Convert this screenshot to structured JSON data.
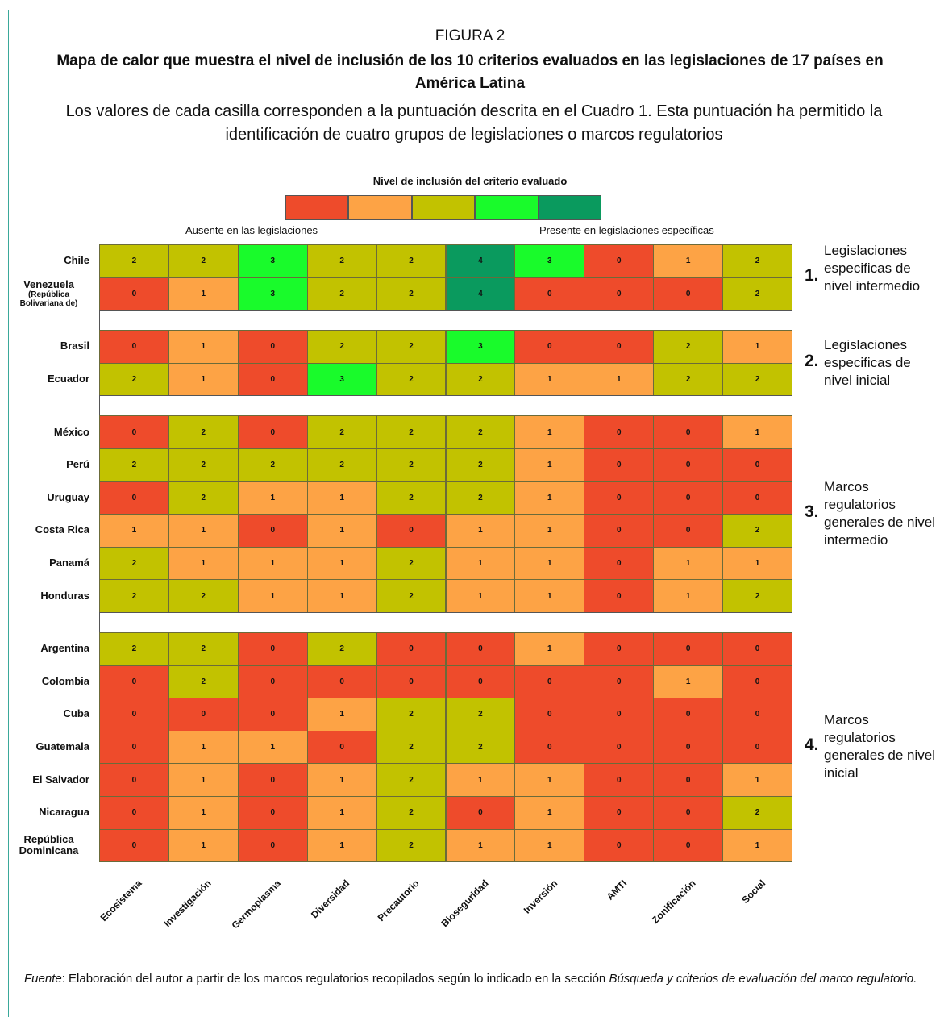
{
  "chart_data": {
    "type": "heatmap",
    "figure_label": "FIGURA 2",
    "title": "Mapa de calor que muestra el nivel de inclusión de los 10 criterios evaluados en las legislaciones de 17 países en América Latina",
    "subtitle": "Los valores de cada casilla corresponden a la puntuación descrita en el Cuadro 1. Esta puntuación ha permitido la identificación de cuatro grupos de legislaciones o marcos regulatorios",
    "legend": {
      "title": "Nivel de inclusión del criterio evaluado",
      "low_label": "Ausente en las legislaciones",
      "high_label": "Presente en legislaciones específicas",
      "levels": [
        0,
        1,
        2,
        3,
        4
      ],
      "colors": [
        "#ee4b2b",
        "#fda345",
        "#c2c200",
        "#19fb2b",
        "#0a9a5e"
      ]
    },
    "columns": [
      "Ecosistema",
      "Investigación",
      "Germoplasma",
      "Diversidad",
      "Precautorio",
      "Bioseguridad",
      "Inversión",
      "AMTI",
      "Zonificación",
      "Social"
    ],
    "groups": [
      {
        "number": "1.",
        "label": "Legislaciones especificas de nivel intermedio",
        "rows": [
          "Chile",
          "Venezuela"
        ],
        "row_notes": [
          null,
          "(República Bolivariana de)"
        ],
        "values": [
          [
            2,
            2,
            3,
            2,
            2,
            4,
            3,
            0,
            1,
            2
          ],
          [
            0,
            1,
            3,
            2,
            2,
            4,
            0,
            0,
            0,
            2
          ]
        ]
      },
      {
        "number": "2.",
        "label": "Legislaciones especificas de nivel inicial",
        "rows": [
          "Brasil",
          "Ecuador"
        ],
        "row_notes": [
          null,
          null
        ],
        "values": [
          [
            0,
            1,
            0,
            2,
            2,
            3,
            0,
            0,
            2,
            1
          ],
          [
            2,
            1,
            0,
            3,
            2,
            2,
            1,
            1,
            2,
            2
          ]
        ]
      },
      {
        "number": "3.",
        "label": "Marcos regulatorios generales de nivel intermedio",
        "rows": [
          "México",
          "Perú",
          "Uruguay",
          "Costa Rica",
          "Panamá",
          "Honduras"
        ],
        "row_notes": [
          null,
          null,
          null,
          null,
          null,
          null
        ],
        "values": [
          [
            0,
            2,
            0,
            2,
            2,
            2,
            1,
            0,
            0,
            1
          ],
          [
            2,
            2,
            2,
            2,
            2,
            2,
            1,
            0,
            0,
            0
          ],
          [
            0,
            2,
            1,
            1,
            2,
            2,
            1,
            0,
            0,
            0
          ],
          [
            1,
            1,
            0,
            1,
            0,
            1,
            1,
            0,
            0,
            2
          ],
          [
            2,
            1,
            1,
            1,
            2,
            1,
            1,
            0,
            1,
            1
          ],
          [
            2,
            2,
            1,
            1,
            2,
            1,
            1,
            0,
            1,
            2
          ]
        ]
      },
      {
        "number": "4.",
        "label": "Marcos regulatorios generales de nivel inicial",
        "rows": [
          "Argentina",
          "Colombia",
          "Cuba",
          "Guatemala",
          "El Salvador",
          "Nicaragua",
          "República Dominicana"
        ],
        "row_notes": [
          null,
          null,
          null,
          null,
          null,
          null,
          null
        ],
        "values": [
          [
            2,
            2,
            0,
            2,
            0,
            0,
            1,
            0,
            0,
            0
          ],
          [
            0,
            2,
            0,
            0,
            0,
            0,
            0,
            0,
            1,
            0
          ],
          [
            0,
            0,
            0,
            1,
            2,
            2,
            0,
            0,
            0,
            0
          ],
          [
            0,
            1,
            1,
            0,
            2,
            2,
            0,
            0,
            0,
            0
          ],
          [
            0,
            1,
            0,
            1,
            2,
            1,
            1,
            0,
            0,
            1
          ],
          [
            0,
            1,
            0,
            1,
            2,
            0,
            1,
            0,
            0,
            2
          ],
          [
            0,
            1,
            0,
            1,
            2,
            1,
            1,
            0,
            0,
            1
          ]
        ]
      }
    ],
    "footer": [
      {
        "text": "Fuente",
        "italic": true
      },
      {
        "text": ": Elaboración del autor a partir de los marcos regulatorios recopilados según lo indicado en la sección ",
        "italic": false
      },
      {
        "text": "Búsqueda y criterios de evaluación del marco regulatorio.",
        "italic": true
      }
    ]
  }
}
